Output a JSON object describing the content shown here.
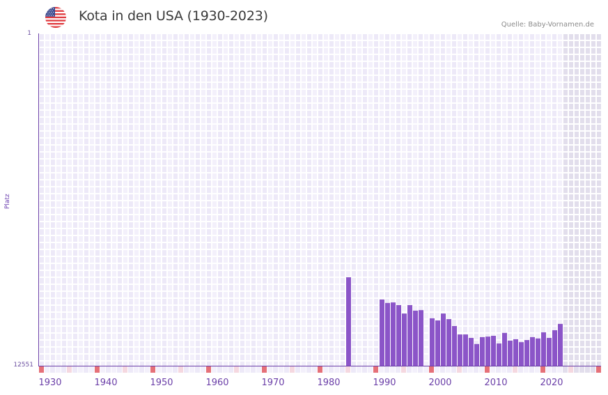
{
  "header": {
    "flag": "us-flag-icon",
    "title": "Kota in den USA (1930-2023)",
    "source": "Quelle: Baby-Vornamen.de"
  },
  "colors": {
    "bar": "#8b55c8",
    "axis": "#6b3fa8",
    "grid_cell_a": "#ede9f8",
    "grid_cell_b": "#f3f0fb",
    "future_cell": "#e2deec",
    "decade_marker": "#e57078",
    "half_decade_marker": "#f5d8e0"
  },
  "chart_data": {
    "type": "bar",
    "title": "Kota in den USA (1930-2023)",
    "xlabel": "",
    "ylabel": "Platz",
    "y_inverted": true,
    "ylim": [
      1,
      12551
    ],
    "yticks": [
      "1",
      "12551"
    ],
    "xlim": [
      1930,
      2030
    ],
    "xticks": [
      "1930",
      "1940",
      "1950",
      "1960",
      "1970",
      "1980",
      "1990",
      "2000",
      "2010",
      "2020"
    ],
    "grid": true,
    "legend": null,
    "data_range_end": 2023,
    "x": [
      1985,
      1991,
      1992,
      1993,
      1994,
      1995,
      1996,
      1997,
      1998,
      2000,
      2001,
      2002,
      2003,
      2004,
      2005,
      2006,
      2007,
      2008,
      2009,
      2010,
      2011,
      2012,
      2013,
      2014,
      2015,
      2016,
      2017,
      2018,
      2019,
      2020,
      2021,
      2022,
      2023
    ],
    "values": [
      9210,
      10050,
      10180,
      10160,
      10260,
      10580,
      10260,
      10470,
      10450,
      10760,
      10840,
      10580,
      10790,
      11050,
      11370,
      11370,
      11500,
      11730,
      11470,
      11450,
      11420,
      11710,
      11310,
      11600,
      11550,
      11660,
      11580,
      11470,
      11520,
      11290,
      11500,
      11210,
      10970
    ]
  }
}
